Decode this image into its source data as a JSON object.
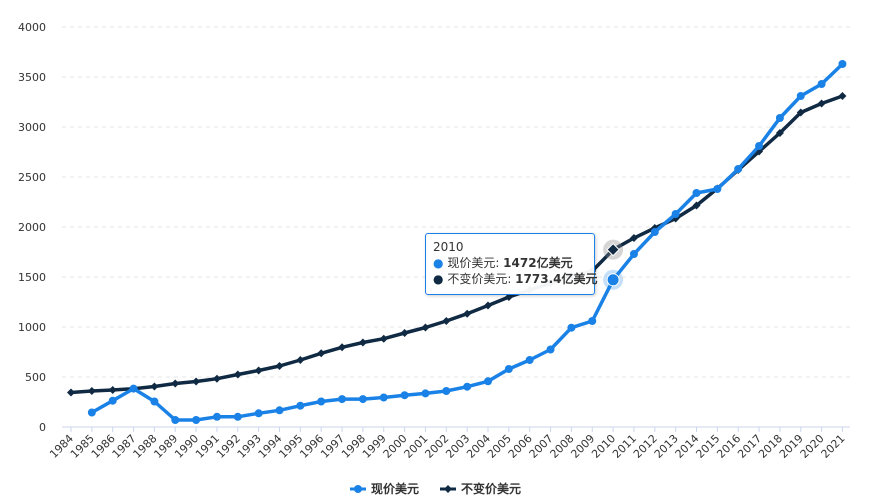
{
  "chart_data": {
    "type": "line",
    "title": "",
    "xlabel": "",
    "ylabel": "",
    "ylim": [
      0,
      4000
    ],
    "yticks": [
      0,
      500,
      1000,
      1500,
      2000,
      2500,
      3000,
      3500,
      4000
    ],
    "grid": true,
    "legend_position": "bottom",
    "x": [
      "1984",
      "1985",
      "1986",
      "1987",
      "1988",
      "1989",
      "1990",
      "1991",
      "1992",
      "1993",
      "1994",
      "1995",
      "1996",
      "1997",
      "1998",
      "1999",
      "2000",
      "2001",
      "2002",
      "2003",
      "2004",
      "2005",
      "2006",
      "2007",
      "2008",
      "2009",
      "2010",
      "2011",
      "2012",
      "2013",
      "2014",
      "2015",
      "2016",
      "2017",
      "2018",
      "2019",
      "2020",
      "2021"
    ],
    "series": [
      {
        "name": "现价美元",
        "color": "#1a82e6",
        "marker": "circle",
        "values": [
          null,
          145,
          263,
          384,
          255,
          70,
          70,
          102,
          102,
          137,
          167,
          213,
          255,
          279,
          279,
          295,
          318,
          336,
          360,
          403,
          457,
          580,
          670,
          775,
          993,
          1060,
          1472,
          1730,
          1950,
          2130,
          2340,
          2380,
          2580,
          2810,
          3090,
          3310,
          3430,
          3630
        ]
      },
      {
        "name": "不变价美元",
        "color": "#102a43",
        "marker": "diamond",
        "values": [
          345,
          360,
          370,
          383,
          405,
          435,
          455,
          483,
          525,
          565,
          610,
          670,
          737,
          797,
          845,
          883,
          940,
          995,
          1060,
          1133,
          1215,
          1300,
          1370,
          1437,
          1510,
          1560,
          1773.4,
          1890,
          1990,
          2085,
          2215,
          2385,
          2570,
          2755,
          2940,
          3145,
          3235,
          3310
        ]
      }
    ]
  },
  "tooltip": {
    "year": "2010",
    "row1_label": "现价美元: ",
    "row1_value": "1472亿美元",
    "row2_label": "不变价美元: ",
    "row2_value": "1773.4亿美元"
  },
  "legend": [
    {
      "label": "现价美元",
      "color": "#1a82e6"
    },
    {
      "label": "不变价美元",
      "color": "#102a43"
    }
  ]
}
